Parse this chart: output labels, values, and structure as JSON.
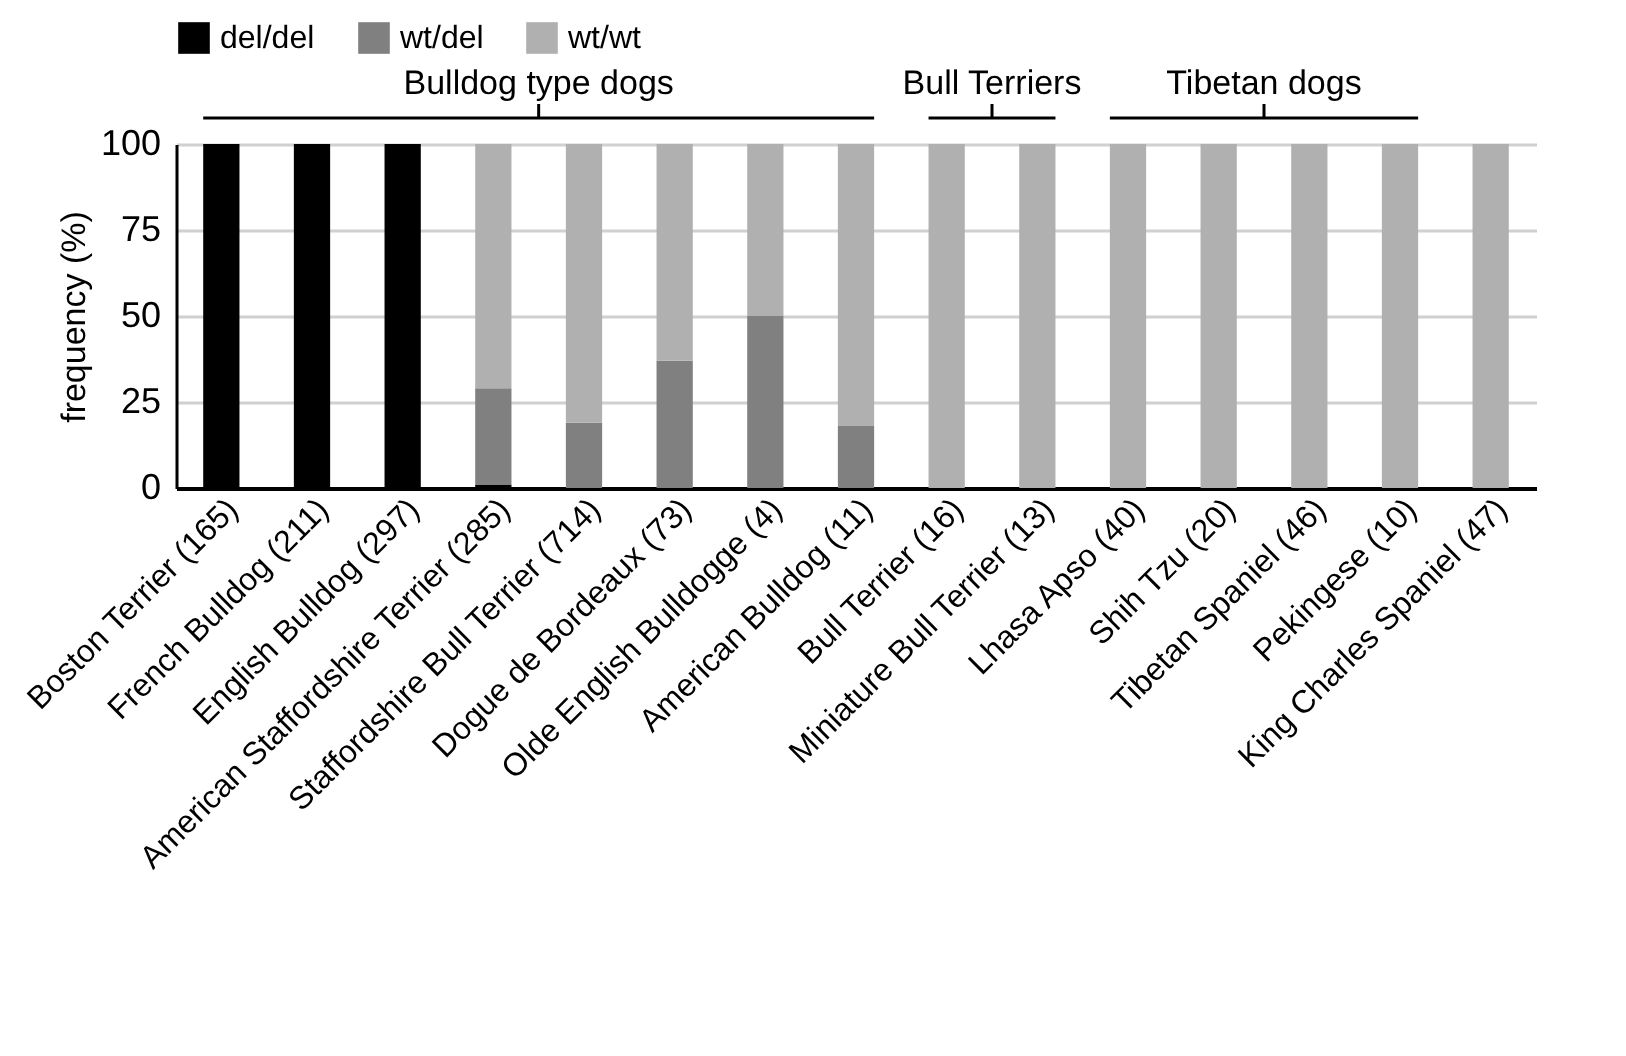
{
  "chart_data": {
    "type": "bar",
    "stacked": true,
    "ylabel": "frequency (%)",
    "categories": [
      "Boston Terrier (165)",
      "French Bulldog (211)",
      "English Bulldog (297)",
      "American Staffordshire Terrier (285)",
      "Staffordshire Bull Terrier (714)",
      "Dogue de Bordeaux (73)",
      "Olde English Bulldogge (4)",
      "American Bulldog (11)",
      "Bull Terrier (16)",
      "Miniature Bull Terrier (13)",
      "Lhasa Apso (40)",
      "Shih Tzu (20)",
      "Tibetan Spaniel (46)",
      "Pekingese (10)",
      "King Charles Spaniel (47)"
    ],
    "series": [
      {
        "name": "del/del",
        "color": "#000000",
        "values": [
          100,
          100,
          100,
          1,
          0,
          0,
          0,
          0,
          0,
          0,
          0,
          0,
          0,
          0,
          0
        ]
      },
      {
        "name": "wt/del",
        "color": "#808080",
        "values": [
          0,
          0,
          0,
          28,
          19,
          37,
          50,
          18,
          0,
          0,
          0,
          0,
          0,
          0,
          0
        ]
      },
      {
        "name": "wt/wt",
        "color": "#b0b0b0",
        "values": [
          0,
          0,
          0,
          71,
          81,
          63,
          50,
          82,
          100,
          100,
          100,
          100,
          100,
          100,
          100
        ]
      }
    ],
    "ylim": [
      0,
      100
    ],
    "yticks": [
      0,
      25,
      50,
      75,
      100
    ],
    "grid": "y",
    "legend": "top",
    "annotations": [
      "Bulldog type dogs",
      "Bull Terriers",
      "Tibetan dogs"
    ]
  }
}
